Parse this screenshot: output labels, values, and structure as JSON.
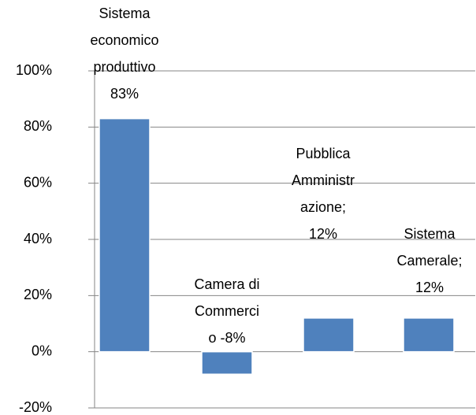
{
  "chart_data": {
    "type": "bar",
    "categories": [
      null,
      null,
      null,
      null
    ],
    "values": [
      83,
      -8,
      12,
      12
    ],
    "value_labels": [
      [
        "Sistema",
        "economico",
        "produttivo",
        "83%"
      ],
      [
        "Camera di",
        "Commerci",
        "o -8%"
      ],
      [
        "Pubblica",
        "Amministr",
        "azione;",
        "12%"
      ],
      [
        "Sistema",
        "Camerale;",
        "12%"
      ]
    ],
    "color": "#4f81bd",
    "ylim": [
      -20,
      100
    ],
    "yticks": [
      {
        "value": -20,
        "label": "-20%"
      },
      {
        "value": 0,
        "label": "0%"
      },
      {
        "value": 20,
        "label": "20%"
      },
      {
        "value": 40,
        "label": "40%"
      },
      {
        "value": 60,
        "label": "60%"
      },
      {
        "value": 80,
        "label": "80%"
      },
      {
        "value": 100,
        "label": "100%"
      }
    ],
    "grid": true
  }
}
